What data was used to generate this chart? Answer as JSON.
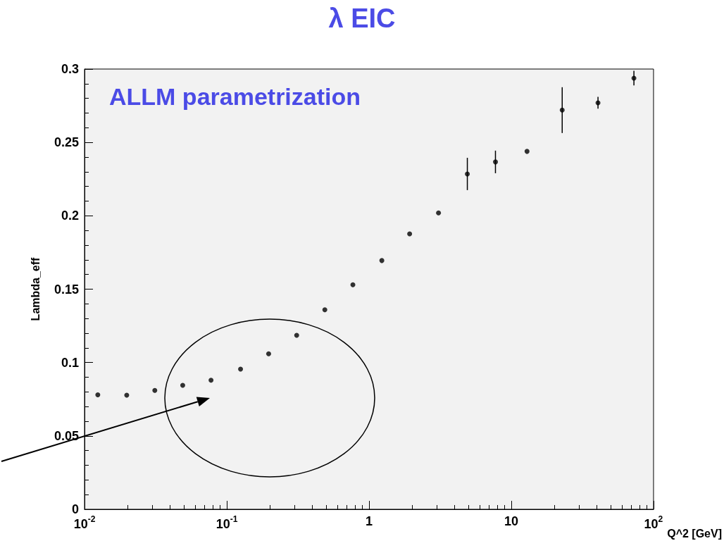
{
  "chart_data": {
    "type": "scatter",
    "title": "λ EIC",
    "xlabel": "Q^2 [GeV]",
    "ylabel": "Lambda_eff",
    "annotations": [
      "ALLM parametrization"
    ],
    "x": [
      0.0124,
      0.0198,
      0.0312,
      0.049,
      0.0775,
      0.125,
      0.197,
      0.31,
      0.489,
      0.77,
      1.23,
      1.93,
      3.08,
      4.91,
      7.74,
      12.9,
      22.8,
      40.7,
      72.8
    ],
    "values": [
      0.078,
      0.0778,
      0.081,
      0.0845,
      0.088,
      0.0955,
      0.106,
      0.1186,
      0.136,
      0.153,
      0.1695,
      0.1877,
      0.202,
      0.2285,
      0.2367,
      0.2439,
      0.272,
      0.277,
      0.2938
    ],
    "errors": [
      null,
      null,
      null,
      null,
      null,
      null,
      null,
      null,
      null,
      null,
      null,
      null,
      null,
      0.011,
      0.0077,
      null,
      0.0156,
      0.004,
      0.005
    ],
    "color": "#000000",
    "marker": "circle",
    "log": "x",
    "grid": false,
    "xlim": [
      0.01,
      100
    ],
    "xticks": [
      {
        "value": 0.01,
        "label": "10$^{-2}$"
      },
      {
        "value": 0.1,
        "label": "10$^{-1}$"
      },
      1,
      10,
      {
        "value": 100,
        "label": "10$^{2}$"
      }
    ],
    "ylim": [
      0,
      0.3
    ],
    "yticks": [
      0,
      0.05,
      0.1,
      0.15,
      0.2,
      0.25,
      0.3
    ]
  }
}
